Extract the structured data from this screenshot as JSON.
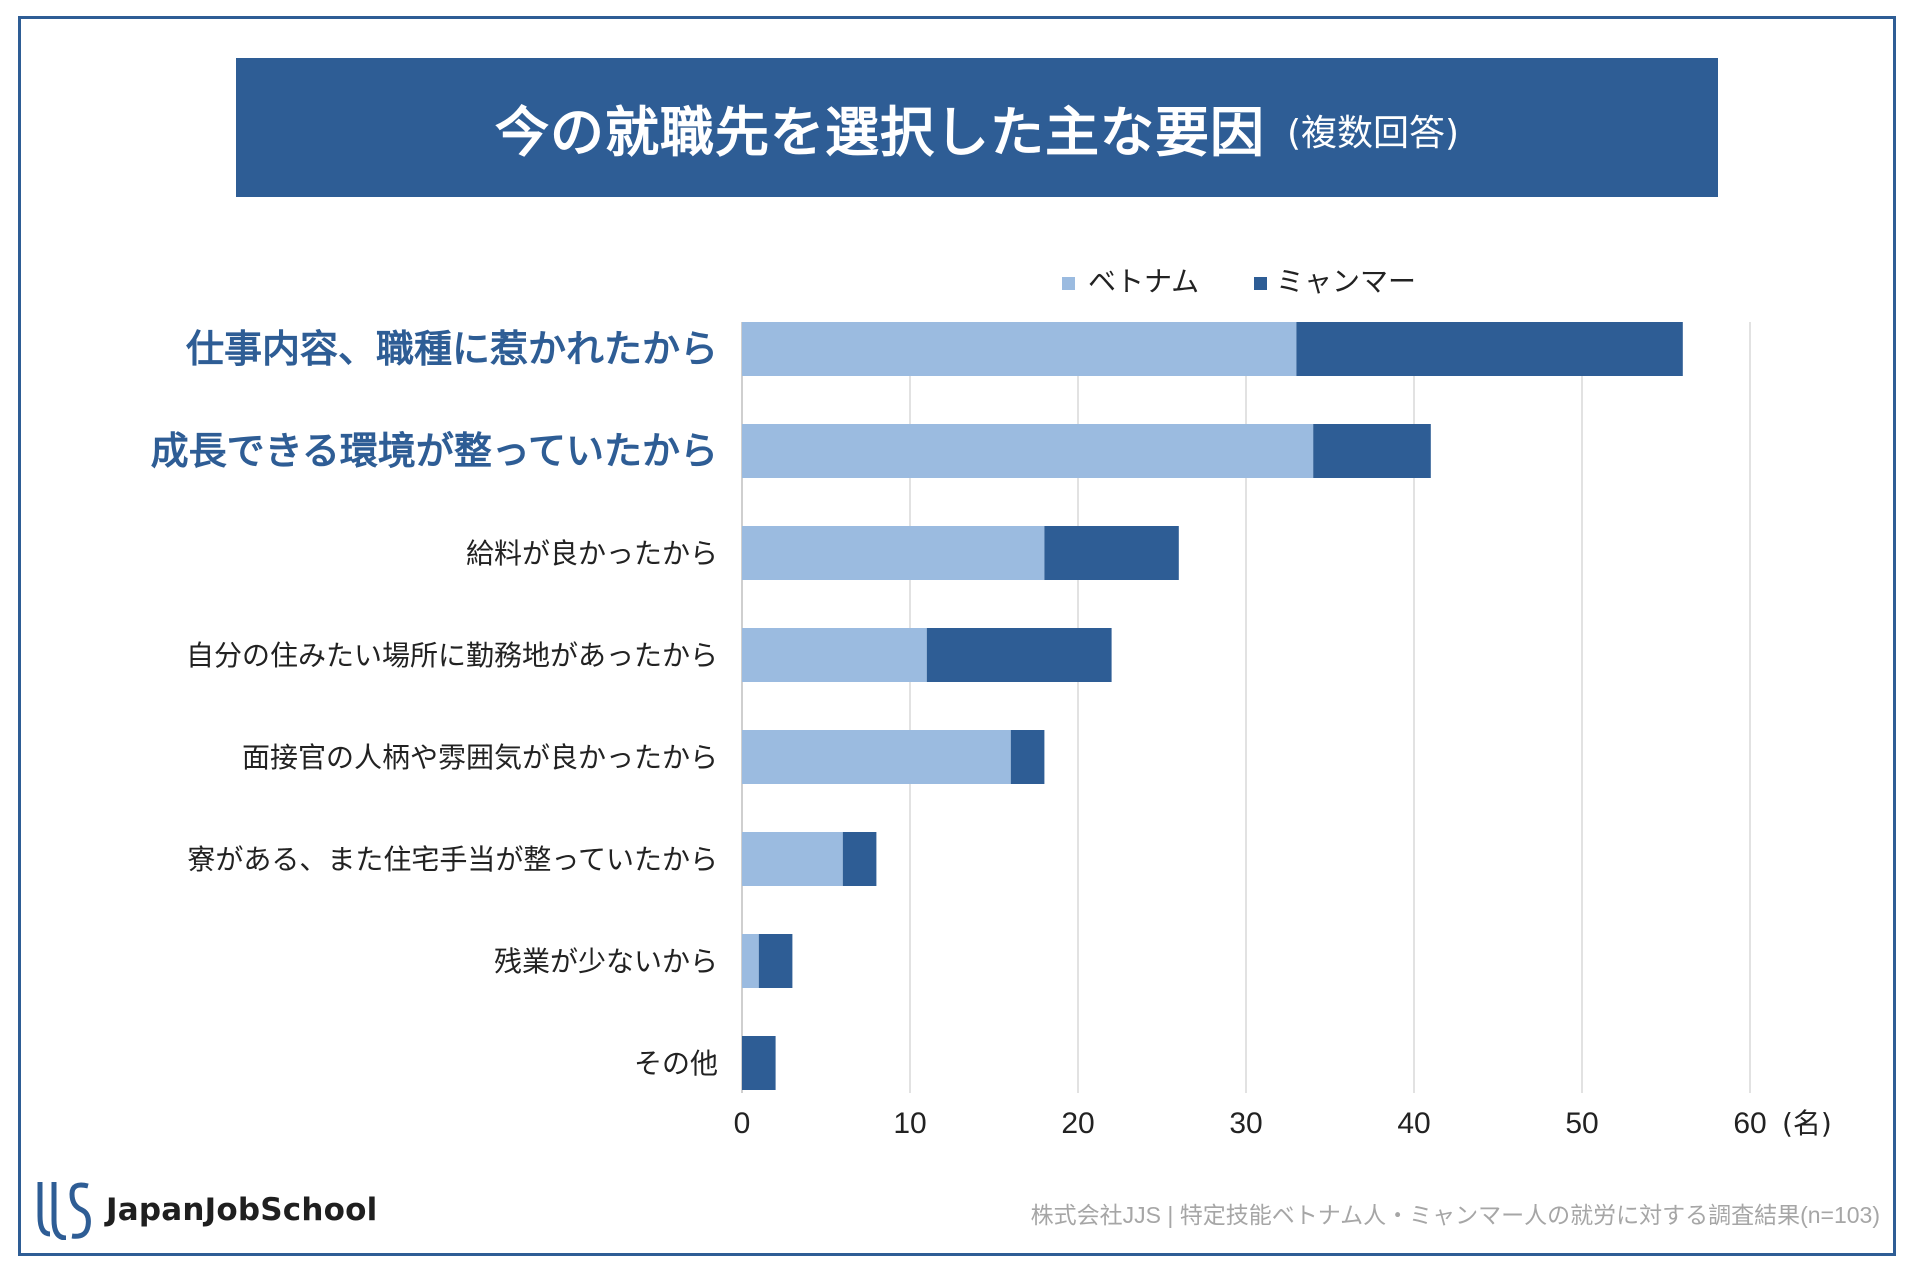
{
  "title": "今の就職先を選択した主な要因",
  "subtitle": "(複数回答)",
  "brand": "JapanJobSchool",
  "footer": "株式会社JJS | 特定技能ベトナム人・ミャンマー人の就労に対する調査結果(n=103)",
  "colors": {
    "vietnam": "#9bbbe0",
    "myanmar": "#2e5d95",
    "highlight": "#2e5d95",
    "text": "#222222",
    "grid": "#d9d9d9"
  },
  "chart_data": {
    "type": "bar",
    "orientation": "horizontal",
    "stacked": true,
    "categories": [
      "仕事内容、職種に惹かれたから",
      "成長できる環境が整っていたから",
      "給料が良かったから",
      "自分の住みたい場所に勤務地があったから",
      "面接官の人柄や雰囲気が良かったから",
      "寮がある、また住宅手当が整っていたから",
      "残業が少ないから",
      "その他"
    ],
    "highlighted": [
      true,
      true,
      false,
      false,
      false,
      false,
      false,
      false
    ],
    "series": [
      {
        "name": "ベトナム",
        "values": [
          33,
          34,
          18,
          11,
          16,
          6,
          1,
          0
        ]
      },
      {
        "name": "ミャンマー",
        "values": [
          23,
          7,
          8,
          11,
          2,
          2,
          2,
          2
        ]
      }
    ],
    "xlim": [
      0,
      60
    ],
    "xticks": [
      0,
      10,
      20,
      30,
      40,
      50,
      60
    ],
    "xunit": "(名)",
    "grid": true,
    "legend": "top-center"
  }
}
